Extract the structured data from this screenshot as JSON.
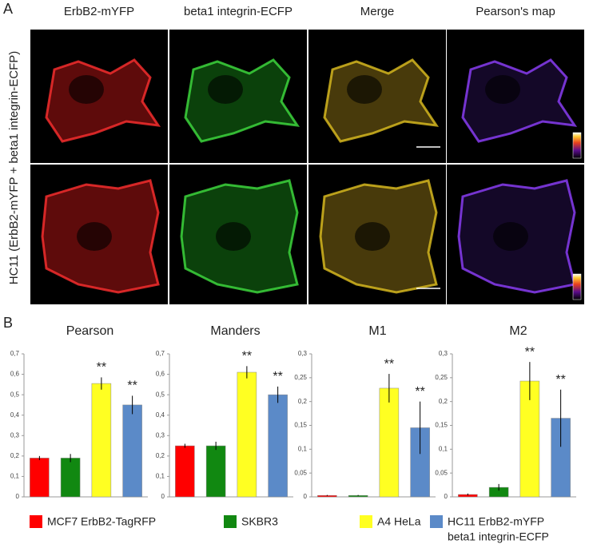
{
  "panel_a": {
    "label": "A",
    "columns": [
      "ErbB2-mYFP",
      "beta1 integrin-ECFP",
      "Merge",
      "Pearson's map"
    ],
    "row_label": "HC11 (ErbB2-mYFP + beta1 integrin-ECFP)"
  },
  "panel_b": {
    "label": "B"
  },
  "legend": [
    {
      "lines": [
        "MCF7 ErbB2-TagRFP"
      ],
      "color": "#ff0000"
    },
    {
      "lines": [
        "SKBR3"
      ],
      "color": "#118811"
    },
    {
      "lines": [
        "A4 HeLa"
      ],
      "color": "#ffff22"
    },
    {
      "lines": [
        "HC11 ErbB2-mYFP",
        "beta1 integrin-ECFP"
      ],
      "color": "#5b8ac8"
    }
  ],
  "chart_data": [
    {
      "type": "bar",
      "title": "Pearson",
      "values": [
        0.19,
        0.19,
        0.555,
        0.45
      ],
      "errors": [
        0.01,
        0.02,
        0.03,
        0.045
      ],
      "ylim": [
        0,
        0.7
      ],
      "yticks": [
        0,
        {
          "value": 0.1,
          "label": "0,1"
        },
        {
          "value": 0.2,
          "label": "0,2"
        },
        {
          "value": 0.3,
          "label": "0,3"
        },
        {
          "value": 0.4,
          "label": "0,4"
        },
        {
          "value": 0.5,
          "label": "0,5"
        },
        {
          "value": 0.6,
          "label": "0,6"
        },
        {
          "value": 0.7,
          "label": "0,7"
        }
      ],
      "annotations": [
        {
          "x": "A4 HeLa",
          "text": "**"
        },
        {
          "x": "HC11 ErbB2-mYFP beta1 integrin-ECFP",
          "text": "**"
        }
      ]
    },
    {
      "type": "bar",
      "title": "Manders",
      "values": [
        0.25,
        0.25,
        0.61,
        0.5
      ],
      "errors": [
        0.01,
        0.02,
        0.03,
        0.04
      ],
      "ylim": [
        0,
        0.7
      ],
      "yticks": [
        0,
        {
          "value": 0.1,
          "label": "0,1"
        },
        {
          "value": 0.2,
          "label": "0,2"
        },
        {
          "value": 0.3,
          "label": "0,3"
        },
        {
          "value": 0.4,
          "label": "0,4"
        },
        {
          "value": 0.5,
          "label": "0,5"
        },
        {
          "value": 0.6,
          "label": "0,6"
        },
        {
          "value": 0.7,
          "label": "0,7"
        }
      ],
      "annotations": [
        {
          "x": "A4 HeLa",
          "text": "**"
        },
        {
          "x": "HC11 ErbB2-mYFP beta1 integrin-ECFP",
          "text": "**"
        }
      ]
    },
    {
      "type": "bar",
      "title": "M1",
      "values": [
        0.003,
        0.003,
        0.228,
        0.145
      ],
      "errors": [
        0.001,
        0.001,
        0.03,
        0.055
      ],
      "ylim": [
        0,
        0.3
      ],
      "yticks": [
        0,
        {
          "value": 0.05,
          "label": "0,05"
        },
        {
          "value": 0.1,
          "label": "0,1"
        },
        {
          "value": 0.15,
          "label": "0,15"
        },
        {
          "value": 0.2,
          "label": "0,2"
        },
        {
          "value": 0.25,
          "label": "0,25"
        },
        {
          "value": 0.3,
          "label": "0,3"
        }
      ],
      "annotations": [
        {
          "x": "A4 HeLa",
          "text": "**"
        },
        {
          "x": "HC11 ErbB2-mYFP beta1 integrin-ECFP",
          "text": "**"
        }
      ]
    },
    {
      "type": "bar",
      "title": "M2",
      "values": [
        0.005,
        0.02,
        0.243,
        0.165
      ],
      "errors": [
        0.002,
        0.007,
        0.04,
        0.06
      ],
      "ylim": [
        0,
        0.3
      ],
      "yticks": [
        0,
        {
          "value": 0.05,
          "label": "0,05"
        },
        {
          "value": 0.1,
          "label": "0,1"
        },
        {
          "value": 0.15,
          "label": "0,15"
        },
        {
          "value": 0.2,
          "label": "0,2"
        },
        {
          "value": 0.25,
          "label": "0,25"
        },
        {
          "value": 0.3,
          "label": "0,3"
        }
      ],
      "annotations": [
        {
          "x": "A4 HeLa",
          "text": "**"
        },
        {
          "x": "HC11 ErbB2-mYFP beta1 integrin-ECFP",
          "text": "**"
        }
      ]
    }
  ]
}
